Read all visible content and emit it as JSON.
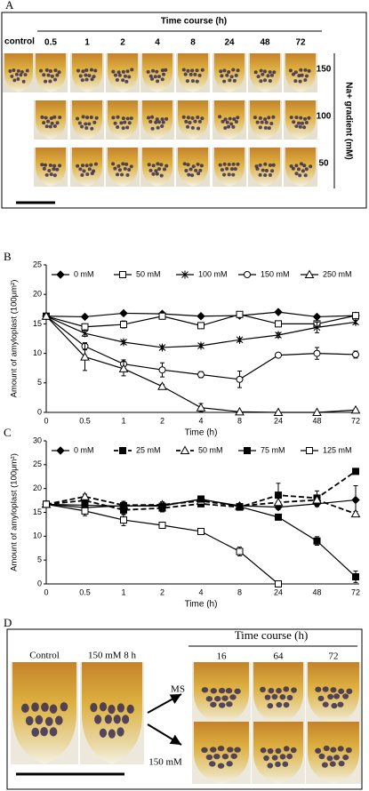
{
  "panel_a": {
    "label": "A",
    "time_course": "Time course (h)",
    "control": "control",
    "times": [
      "0.5",
      "1",
      "2",
      "4",
      "8",
      "24",
      "48",
      "72"
    ],
    "concentrations": [
      "150",
      "100",
      "50"
    ],
    "gradient_label": "Na+ gradient (mM)"
  },
  "chart_data": [
    {
      "type": "line",
      "panel_label": "B",
      "categories": [
        "0",
        "0.5",
        "1",
        "2",
        "4",
        "8",
        "24",
        "48",
        "72"
      ],
      "x_label": "Time (h)",
      "y_label": "Amount of amyloplast (100μm²)",
      "ylim": [
        0,
        25
      ],
      "yticks": [
        0,
        5,
        10,
        15,
        20,
        25
      ],
      "series": [
        {
          "name": "0 mM",
          "color": "#000000",
          "marker": "diamond",
          "dash": false,
          "values": [
            16.3,
            16.2,
            16.8,
            16.7,
            16.3,
            16.4,
            17.0,
            16.2,
            16.4
          ],
          "errors": [
            0.3,
            0.3,
            0.3,
            0.3,
            0.3,
            0.3,
            0.3,
            0.3,
            0.3
          ]
        },
        {
          "name": "50 mM",
          "color": "#000000",
          "marker": "square-open",
          "dash": false,
          "values": [
            16.3,
            14.5,
            14.9,
            16.3,
            14.7,
            16.6,
            15.0,
            15.0,
            16.4
          ],
          "errors": [
            0.3,
            0.5,
            0.6,
            0.5,
            0.3,
            0.5,
            0.3,
            0.4,
            0.3
          ]
        },
        {
          "name": "100 mM",
          "color": "#000000",
          "marker": "star",
          "dash": false,
          "values": [
            16.3,
            13.4,
            11.9,
            11.0,
            11.3,
            12.3,
            13.1,
            14.4,
            15.3
          ],
          "errors": [
            0.3,
            0.5,
            0.3,
            0.3,
            0.3,
            0.3,
            0.4,
            0.9,
            0.3
          ]
        },
        {
          "name": "150 mM",
          "color": "#000000",
          "marker": "circle-open",
          "dash": false,
          "values": [
            16.3,
            11.2,
            8.2,
            7.2,
            6.4,
            5.6,
            9.7,
            10.0,
            9.8
          ],
          "errors": [
            0.3,
            0.6,
            0.7,
            1.2,
            0.5,
            1.4,
            0.3,
            1.0,
            0.6
          ]
        },
        {
          "name": "250 mM",
          "color": "#000000",
          "marker": "triangle-open",
          "dash": false,
          "values": [
            16.3,
            9.4,
            7.4,
            4.4,
            0.8,
            0.1,
            0,
            0,
            0.4
          ],
          "errors": [
            0.3,
            2.3,
            1.2,
            0.3,
            0.7,
            0.1,
            0,
            0,
            0.2
          ]
        }
      ]
    },
    {
      "type": "line",
      "panel_label": "C",
      "categories": [
        "0",
        "0.5",
        "1",
        "2",
        "4",
        "8",
        "24",
        "48",
        "72"
      ],
      "x_label": "Time (h)",
      "y_label": "Amount of amyloplast (100μm²)",
      "ylim": [
        0,
        30
      ],
      "yticks": [
        0,
        5,
        10,
        15,
        20,
        25,
        30
      ],
      "series": [
        {
          "name": "0 mM",
          "color": "#000000",
          "marker": "diamond",
          "dash": false,
          "values": [
            16.7,
            16.5,
            16.3,
            16.5,
            17.7,
            16.4,
            16.1,
            16.8,
            17.6
          ],
          "errors": [
            0.3,
            0.6,
            0.8,
            0.5,
            0.4,
            0.4,
            0.5,
            0.6,
            3.0
          ]
        },
        {
          "name": "25 mM",
          "color": "#000000",
          "marker": "square",
          "dash": true,
          "values": [
            16.7,
            17.5,
            15.5,
            15.9,
            16.8,
            16.1,
            18.6,
            18.0,
            23.6
          ],
          "errors": [
            0.3,
            0.6,
            1.0,
            0.8,
            0.5,
            0.5,
            2.5,
            1.5,
            0.5
          ]
        },
        {
          "name": "50 mM",
          "color": "#000000",
          "marker": "triangle-open",
          "dash": true,
          "values": [
            16.7,
            18.3,
            16.5,
            16.6,
            17.4,
            16.3,
            17.1,
            17.6,
            14.7
          ],
          "errors": [
            0.3,
            0.5,
            0.8,
            0.6,
            0.5,
            0.5,
            1.2,
            1.0,
            0.5
          ]
        },
        {
          "name": "75 mM",
          "color": "#000000",
          "marker": "square",
          "dash": false,
          "values": [
            16.7,
            16.0,
            16.4,
            16.3,
            17.8,
            16.2,
            14.0,
            9.0,
            1.5
          ],
          "errors": [
            0.3,
            0.5,
            0.5,
            0.5,
            0.4,
            0.5,
            0.5,
            0.9,
            1.2
          ]
        },
        {
          "name": "125 mM",
          "color": "#000000",
          "marker": "square-open",
          "dash": false,
          "values": [
            16.7,
            15.3,
            13.4,
            12.3,
            11.0,
            6.8,
            0,
            null,
            null
          ],
          "errors": [
            0.3,
            1.0,
            1.2,
            0.5,
            0.5,
            0.9,
            0,
            null,
            null
          ]
        }
      ]
    }
  ],
  "panel_d": {
    "label": "D",
    "control": "Control",
    "treated": "150 mM  8 h",
    "time_course": "Time course (h)",
    "times": [
      "16",
      "64",
      "72"
    ],
    "rows": [
      "MS",
      "150 mM"
    ]
  }
}
